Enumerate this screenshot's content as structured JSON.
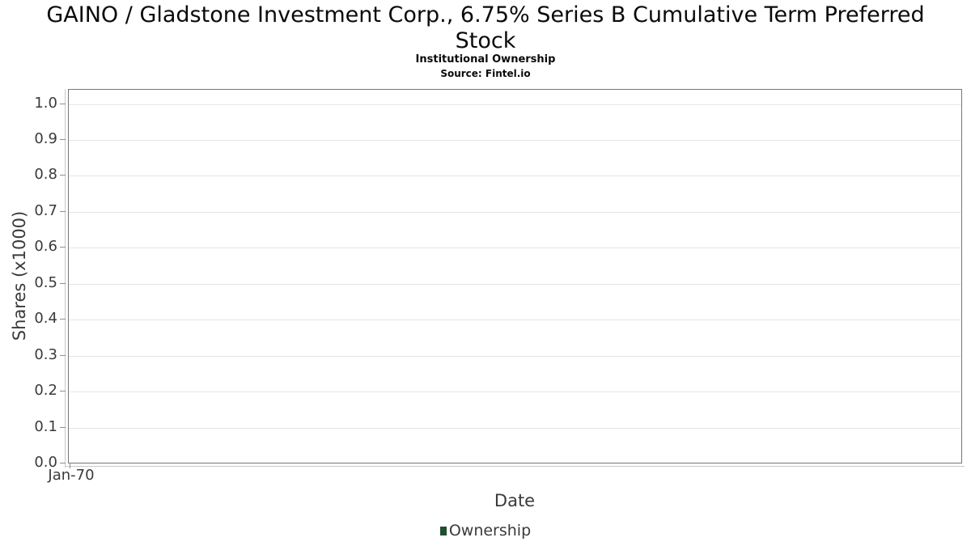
{
  "chart_data": {
    "type": "line",
    "title": "GAINO / Gladstone Investment Corp., 6.75% Series B Cumulative Term Preferred Stock",
    "title_lines": [
      "GAINO / Gladstone Investment Corp., 6.75% Series B Cumulative Term Preferred",
      "Stock"
    ],
    "subtitle": "Institutional Ownership",
    "source": "Source: Fintel.io",
    "xlabel": "Date",
    "ylabel": "Shares (x1000)",
    "x_tick_labels": [
      "Jan-70"
    ],
    "y_tick_labels": [
      "0.0",
      "0.1",
      "0.2",
      "0.3",
      "0.4",
      "0.5",
      "0.6",
      "0.7",
      "0.8",
      "0.9",
      "1.0"
    ],
    "ylim": [
      0,
      1.04
    ],
    "grid": true,
    "legend": {
      "position": "bottom-center",
      "entries": [
        {
          "label": "Ownership",
          "color": "#1e4f2e"
        }
      ]
    },
    "series": [
      {
        "name": "Ownership",
        "color": "#1e4f2e",
        "points": []
      }
    ]
  },
  "colors": {
    "background": "#ffffff",
    "title_text": "#0a0a0a",
    "axis_text": "#3a3a3a",
    "plot_border": "#767676",
    "gridline": "#e7e7e7",
    "axis_line": "#c9c9c9",
    "tick_mark": "#8f8f8f",
    "legend_swatch": "#1e4f2e"
  }
}
